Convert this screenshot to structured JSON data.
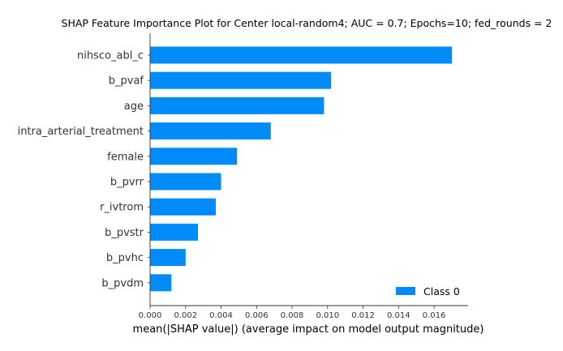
{
  "chart_data": {
    "type": "bar",
    "orientation": "horizontal",
    "title": "SHAP Feature Importance Plot for Center local-random4; AUC = 0.7; Epochs=10; fed_rounds = 2",
    "xlabel": "mean(|SHAP value|) (average impact on model output magnitude)",
    "ylabel": "",
    "categories": [
      "nihsco_abl_c",
      "b_pvaf",
      "age",
      "intra_arterial_treatment",
      "female",
      "b_pvrr",
      "r_ivtrom",
      "b_pvstr",
      "b_pvhc",
      "b_pvdm"
    ],
    "series": [
      {
        "name": "Class 0",
        "color": "#008bfb",
        "values": [
          0.017,
          0.0102,
          0.0098,
          0.0068,
          0.0049,
          0.004,
          0.0037,
          0.0027,
          0.002,
          0.0012
        ]
      }
    ],
    "xlim": [
      0,
      0.018
    ],
    "xticks": [
      0,
      0.002,
      0.004,
      0.006,
      0.008,
      0.01,
      0.012,
      0.014,
      0.016
    ],
    "xtick_labels": [
      "0.000",
      "0.002",
      "0.004",
      "0.006",
      "0.008",
      "0.010",
      "0.012",
      "0.014",
      "0.016"
    ],
    "grid": false,
    "legend": {
      "position": "bottom-right",
      "entries": [
        "Class 0"
      ]
    }
  }
}
